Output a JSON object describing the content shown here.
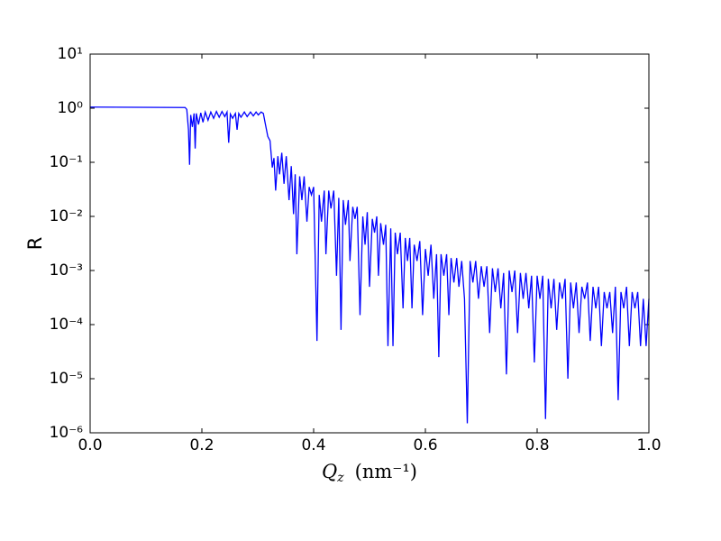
{
  "chart_data": {
    "type": "line",
    "log_y": true,
    "color": "#0000ff",
    "y_label": "R",
    "x_label": {
      "symbol": "Q",
      "subscript": "z",
      "unit": "(nm⁻¹)"
    },
    "xlim": [
      0,
      1
    ],
    "ylim": [
      1e-06,
      10
    ],
    "xticks": [
      {
        "value": 0,
        "label": "0.0"
      },
      0.2,
      0.4,
      0.6,
      0.8,
      {
        "value": 1,
        "label": "1.0"
      }
    ],
    "yticks": [
      {
        "value": 1e-06,
        "label": "10⁻⁶"
      },
      {
        "value": 1e-05,
        "label": "10⁻⁵"
      },
      {
        "value": 0.0001,
        "label": "10⁻⁴"
      },
      {
        "value": 0.001,
        "label": "10⁻³"
      },
      {
        "value": 0.01,
        "label": "10⁻²"
      },
      {
        "value": 0.1,
        "label": "10⁻¹"
      },
      {
        "value": 1,
        "label": "10⁰"
      },
      {
        "value": 10,
        "label": "10¹"
      }
    ],
    "x": [
      0,
      0.17,
      0.173,
      0.176,
      0.178,
      0.18,
      0.183,
      0.186,
      0.188,
      0.19,
      0.194,
      0.198,
      0.202,
      0.206,
      0.211,
      0.216,
      0.221,
      0.226,
      0.231,
      0.236,
      0.241,
      0.245,
      0.248,
      0.251,
      0.255,
      0.26,
      0.263,
      0.266,
      0.27,
      0.276,
      0.281,
      0.287,
      0.292,
      0.297,
      0.301,
      0.306,
      0.31,
      0.313,
      0.318,
      0.322,
      0.326,
      0.329,
      0.332,
      0.336,
      0.339,
      0.343,
      0.347,
      0.351,
      0.356,
      0.36,
      0.364,
      0.367,
      0.37,
      0.375,
      0.379,
      0.383,
      0.388,
      0.392,
      0.396,
      0.4,
      0.406,
      0.41,
      0.414,
      0.419,
      0.422,
      0.427,
      0.431,
      0.436,
      0.441,
      0.445,
      0.449,
      0.453,
      0.457,
      0.462,
      0.465,
      0.47,
      0.474,
      0.478,
      0.483,
      0.488,
      0.492,
      0.496,
      0.5,
      0.505,
      0.509,
      0.513,
      0.516,
      0.52,
      0.525,
      0.529,
      0.533,
      0.538,
      0.542,
      0.546,
      0.55,
      0.555,
      0.56,
      0.564,
      0.568,
      0.572,
      0.576,
      0.58,
      0.585,
      0.59,
      0.595,
      0.6,
      0.605,
      0.61,
      0.615,
      0.62,
      0.624,
      0.628,
      0.633,
      0.638,
      0.642,
      0.646,
      0.651,
      0.656,
      0.66,
      0.665,
      0.67,
      0.675,
      0.68,
      0.685,
      0.69,
      0.695,
      0.7,
      0.705,
      0.71,
      0.715,
      0.72,
      0.725,
      0.73,
      0.735,
      0.74,
      0.745,
      0.75,
      0.755,
      0.76,
      0.765,
      0.77,
      0.775,
      0.78,
      0.785,
      0.79,
      0.795,
      0.8,
      0.805,
      0.81,
      0.815,
      0.82,
      0.825,
      0.83,
      0.835,
      0.84,
      0.845,
      0.85,
      0.855,
      0.86,
      0.865,
      0.87,
      0.875,
      0.88,
      0.885,
      0.89,
      0.895,
      0.9,
      0.905,
      0.91,
      0.915,
      0.92,
      0.925,
      0.93,
      0.935,
      0.94,
      0.945,
      0.95,
      0.955,
      0.96,
      0.965,
      0.97,
      0.975,
      0.98,
      0.985,
      0.99,
      0.995,
      1
    ],
    "values": [
      1.05,
      1.03,
      0.95,
      0.4,
      0.09,
      0.75,
      0.45,
      0.8,
      0.18,
      0.8,
      0.5,
      0.82,
      0.55,
      0.85,
      0.6,
      0.85,
      0.65,
      0.87,
      0.68,
      0.87,
      0.7,
      0.85,
      0.23,
      0.78,
      0.65,
      0.8,
      0.4,
      0.8,
      0.68,
      0.85,
      0.7,
      0.85,
      0.72,
      0.85,
      0.75,
      0.85,
      0.8,
      0.55,
      0.3,
      0.25,
      0.08,
      0.12,
      0.03,
      0.13,
      0.06,
      0.15,
      0.04,
      0.13,
      0.02,
      0.085,
      0.011,
      0.06,
      0.002,
      0.055,
      0.02,
      0.055,
      0.008,
      0.035,
      0.025,
      0.035,
      5e-05,
      0.025,
      0.008,
      0.03,
      0.002,
      0.03,
      0.014,
      0.03,
      0.0008,
      0.022,
      8e-05,
      0.02,
      0.007,
      0.02,
      0.0015,
      0.015,
      0.009,
      0.015,
      0.00015,
      0.01,
      0.003,
      0.012,
      0.0005,
      0.009,
      0.005,
      0.01,
      0.0008,
      0.0075,
      0.003,
      0.007,
      4e-05,
      0.006,
      4e-05,
      0.005,
      0.002,
      0.005,
      0.0002,
      0.004,
      0.0015,
      0.004,
      0.0002,
      0.003,
      0.0015,
      0.0035,
      0.00015,
      0.0025,
      0.0008,
      0.003,
      0.0003,
      0.002,
      2.5e-05,
      0.002,
      0.0008,
      0.002,
      0.00015,
      0.0017,
      0.0006,
      0.0017,
      0.0005,
      0.0015,
      0.0003,
      1.5e-06,
      0.0015,
      0.0006,
      0.0015,
      0.0003,
      0.0012,
      0.0005,
      0.0012,
      7e-05,
      0.0011,
      0.0004,
      0.0011,
      0.0002,
      0.0009,
      1.2e-05,
      0.001,
      0.0004,
      0.001,
      7e-05,
      0.0009,
      0.0003,
      0.0009,
      0.0002,
      0.0008,
      2e-05,
      0.0008,
      0.0003,
      0.0008,
      1.8e-06,
      0.0007,
      0.0002,
      0.0007,
      8e-05,
      0.0006,
      0.0003,
      0.0007,
      1e-05,
      0.0006,
      0.0002,
      0.0006,
      7e-05,
      0.0005,
      0.0003,
      0.0006,
      5e-05,
      0.0005,
      0.0002,
      0.0005,
      4e-05,
      0.0004,
      0.0002,
      0.0004,
      7e-05,
      0.0005,
      4e-06,
      0.0004,
      0.0002,
      0.0005,
      4e-05,
      0.0004,
      0.0002,
      0.0004,
      4e-05,
      0.0003,
      4e-05,
      0.0003
    ]
  }
}
